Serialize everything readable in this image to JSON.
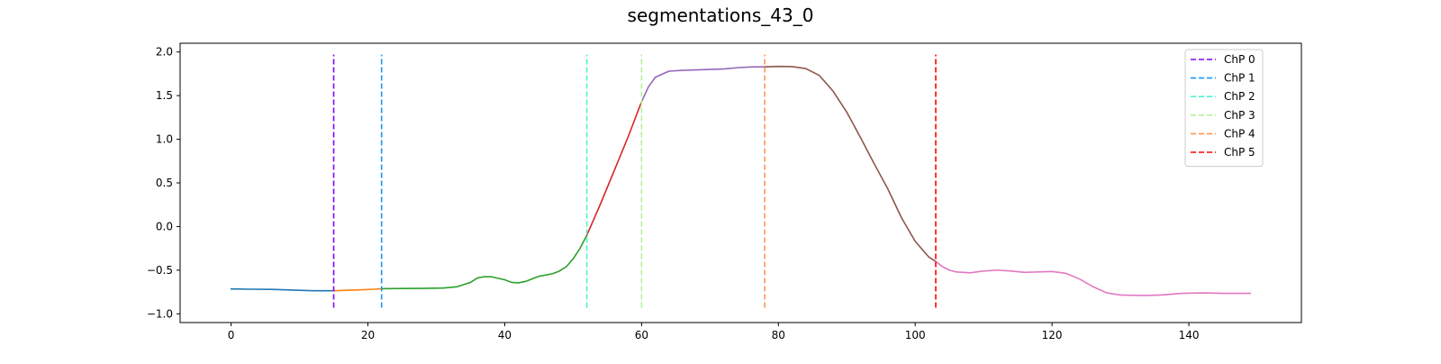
{
  "chart_data": {
    "type": "line",
    "title": "segmentations_43_0",
    "xlabel": "",
    "ylabel": "",
    "xlim": [
      -7.45,
      156.45
    ],
    "ylim": [
      -1.1,
      2.1
    ],
    "x_ticks": [
      0,
      20,
      40,
      60,
      80,
      100,
      120,
      140
    ],
    "y_ticks": [
      -1.0,
      -0.5,
      0.0,
      0.5,
      1.0,
      1.5,
      2.0
    ],
    "y_tick_labels": [
      "−1.0",
      "−0.5",
      "0.0",
      "0.5",
      "1.0",
      "1.5",
      "2.0"
    ],
    "grid": false,
    "legend_position": "top-right",
    "segments": [
      {
        "color": "#1f77b4",
        "x": [
          0,
          3,
          6,
          9,
          12,
          15
        ],
        "y": [
          -0.715,
          -0.718,
          -0.72,
          -0.728,
          -0.735,
          -0.735
        ]
      },
      {
        "color": "#ff7f0e",
        "x": [
          15,
          18,
          21,
          22
        ],
        "y": [
          -0.735,
          -0.728,
          -0.718,
          -0.712
        ]
      },
      {
        "color": "#2ca02c",
        "x": [
          22,
          25,
          28,
          31,
          33,
          35,
          36,
          37,
          38,
          40,
          41,
          42,
          43,
          45,
          47,
          48,
          49,
          50,
          51,
          52
        ],
        "y": [
          -0.712,
          -0.71,
          -0.708,
          -0.705,
          -0.69,
          -0.64,
          -0.59,
          -0.575,
          -0.575,
          -0.61,
          -0.64,
          -0.645,
          -0.63,
          -0.57,
          -0.54,
          -0.51,
          -0.46,
          -0.37,
          -0.25,
          -0.1
        ]
      },
      {
        "color": "#d62728",
        "x": [
          52,
          54,
          56,
          58,
          60
        ],
        "y": [
          -0.1,
          0.26,
          0.64,
          1.02,
          1.43
        ]
      },
      {
        "color": "#9467bd",
        "x": [
          60,
          61,
          62,
          63,
          64,
          66,
          68,
          70,
          72,
          74,
          76,
          78
        ],
        "y": [
          1.43,
          1.6,
          1.71,
          1.745,
          1.78,
          1.79,
          1.795,
          1.8,
          1.805,
          1.82,
          1.828,
          1.83
        ]
      },
      {
        "color": "#8c564b",
        "x": [
          78,
          80,
          82,
          84,
          86,
          88,
          90,
          92,
          94,
          96,
          98,
          100,
          102,
          103
        ],
        "y": [
          1.83,
          1.835,
          1.832,
          1.81,
          1.73,
          1.55,
          1.31,
          1.02,
          0.72,
          0.43,
          0.1,
          -0.17,
          -0.35,
          -0.4
        ]
      },
      {
        "color": "#e377c2",
        "x": [
          103,
          104,
          105,
          106,
          108,
          110,
          112,
          114,
          116,
          118,
          120,
          122,
          124,
          126,
          128,
          130,
          133,
          136,
          139,
          142,
          145,
          149
        ],
        "y": [
          -0.4,
          -0.46,
          -0.5,
          -0.52,
          -0.53,
          -0.51,
          -0.5,
          -0.51,
          -0.525,
          -0.52,
          -0.515,
          -0.535,
          -0.6,
          -0.69,
          -0.76,
          -0.785,
          -0.79,
          -0.785,
          -0.765,
          -0.76,
          -0.765,
          -0.765
        ]
      }
    ],
    "changepoints": [
      {
        "name": "ChP 0",
        "x": 15,
        "color": "#8000ff"
      },
      {
        "name": "ChP 1",
        "x": 22,
        "color": "#1996f3"
      },
      {
        "name": "ChP 2",
        "x": 52,
        "color": "#4df3ce"
      },
      {
        "name": "ChP 3",
        "x": 60,
        "color": "#b2f396"
      },
      {
        "name": "ChP 4",
        "x": 78,
        "color": "#ff964f"
      },
      {
        "name": "ChP 5",
        "x": 103,
        "color": "#ff0000"
      }
    ],
    "changepoint_y_range": [
      -0.93,
      1.97
    ]
  }
}
